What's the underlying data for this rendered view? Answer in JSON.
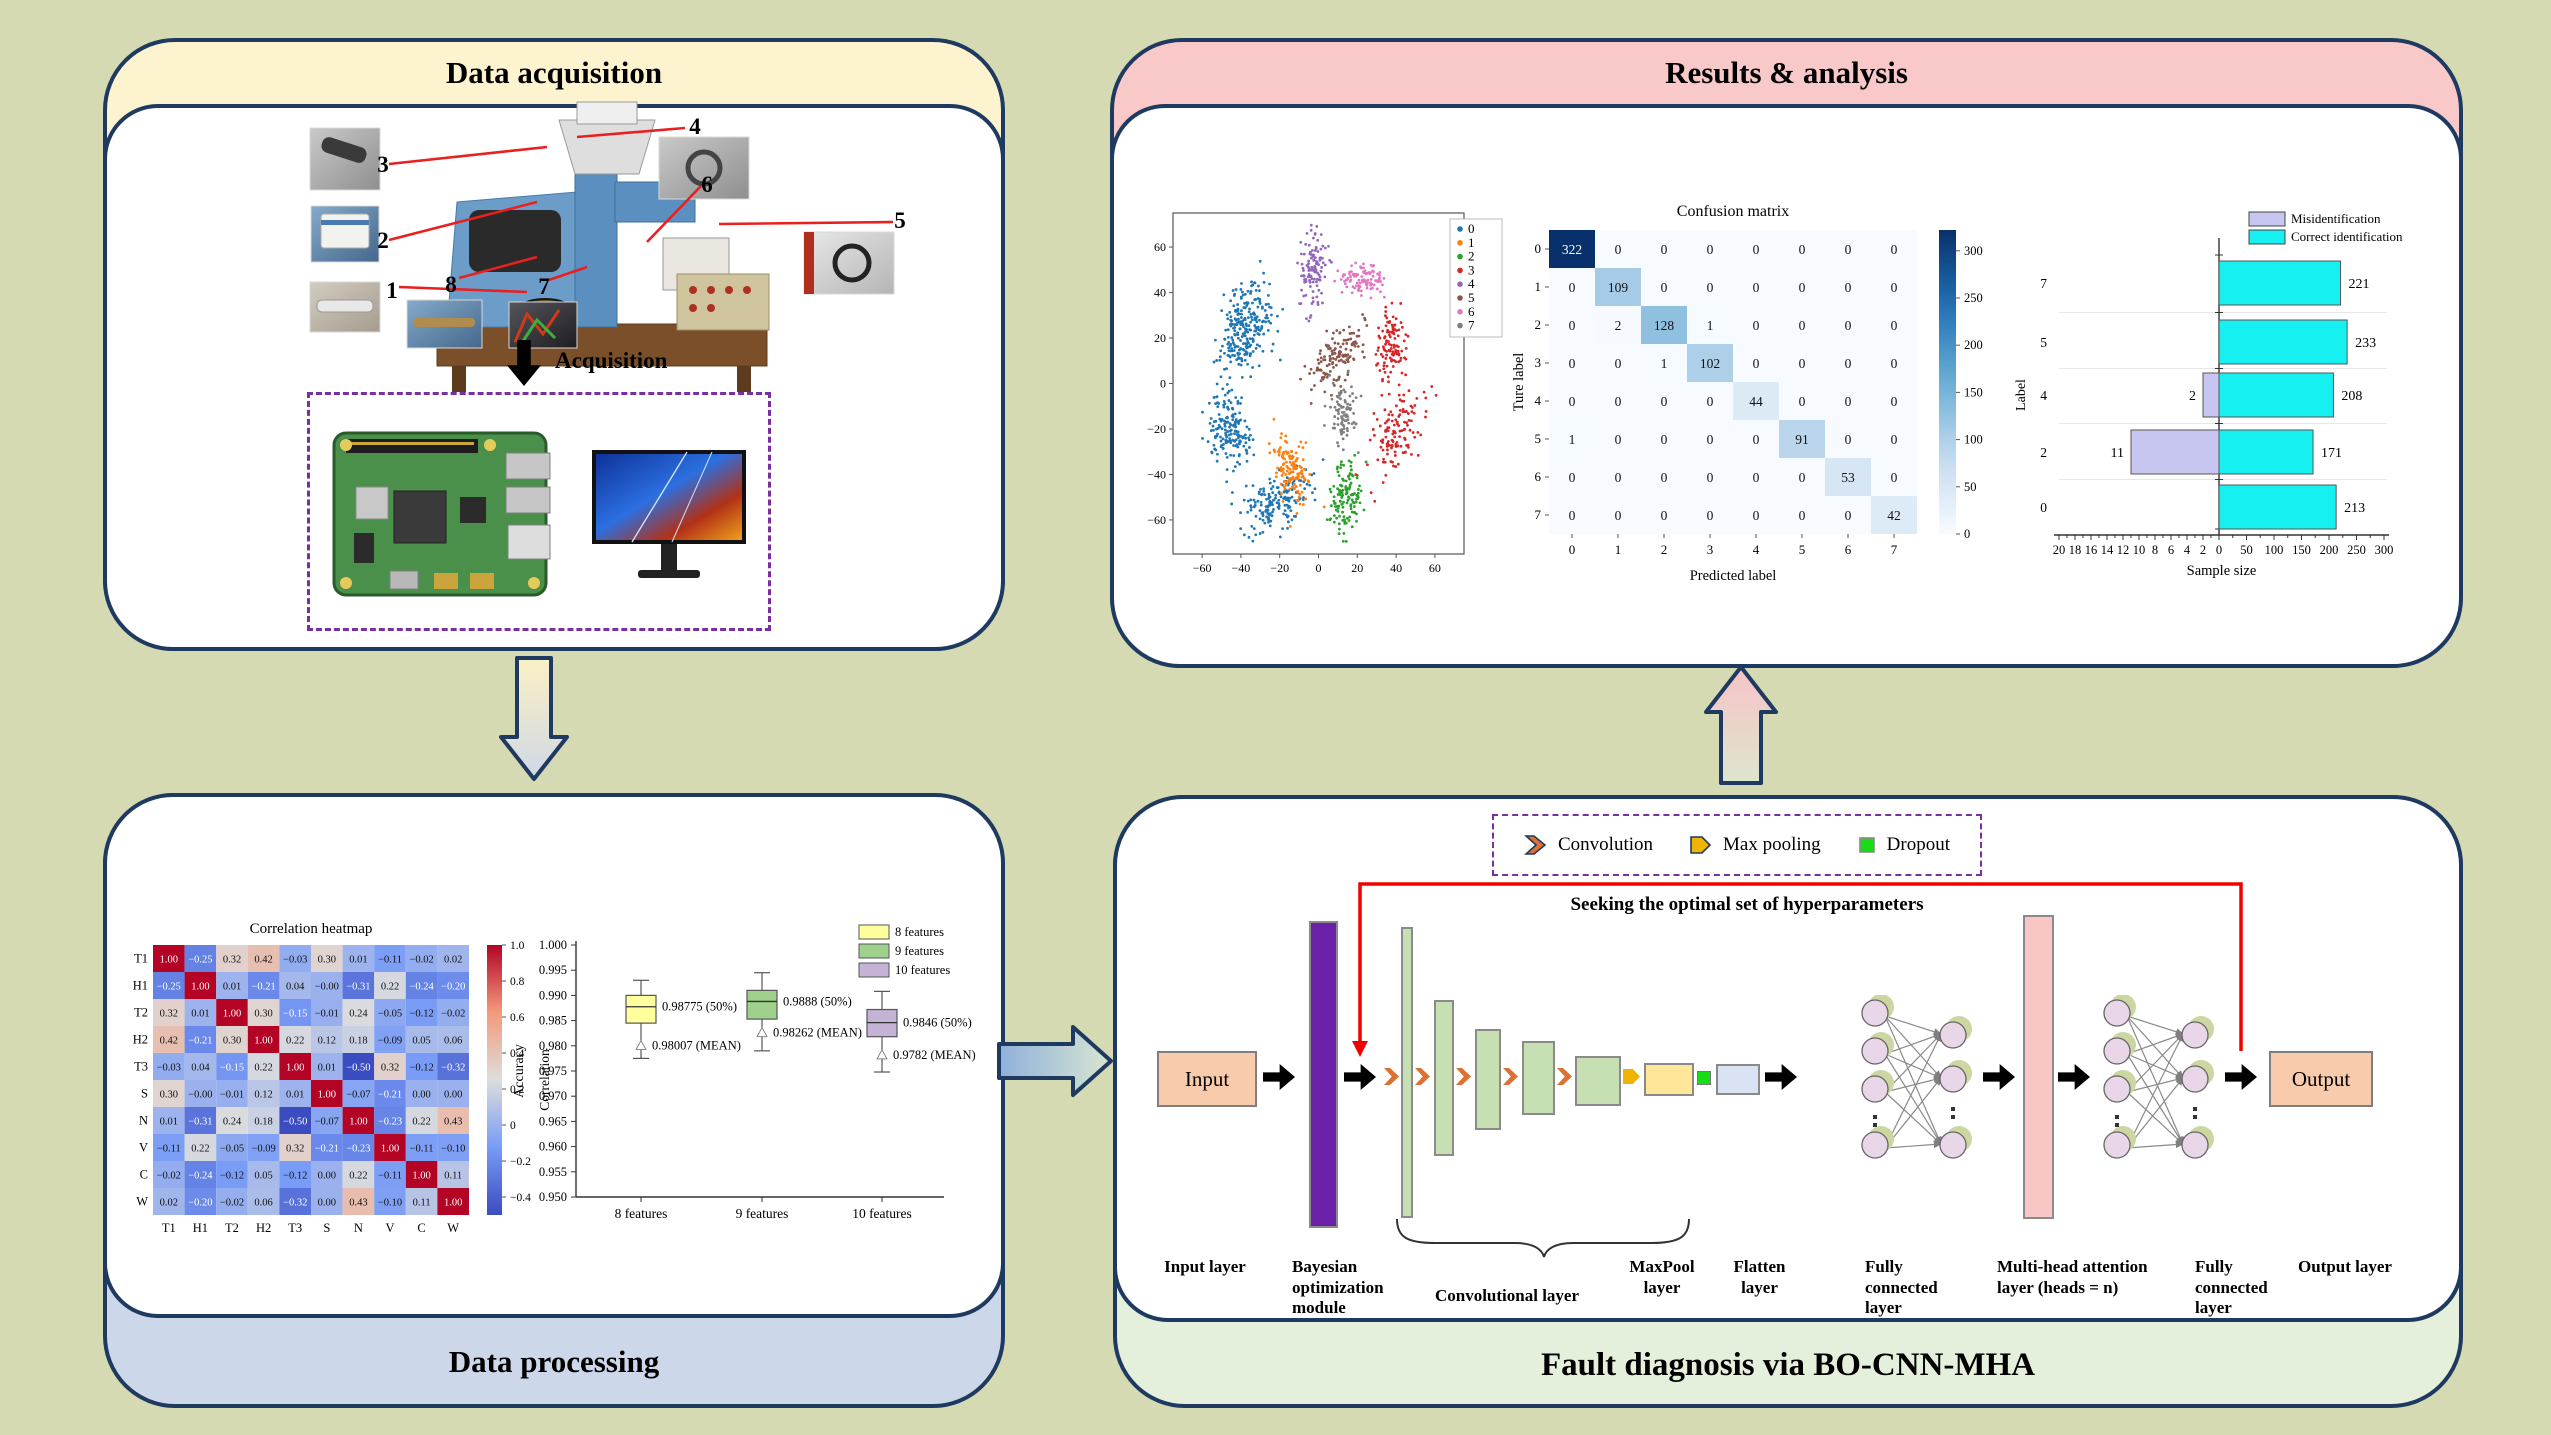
{
  "panels": {
    "data_acquisition": {
      "title": "Data acquisition",
      "acquisition_label": "Acquisition",
      "callouts": [
        "1",
        "2",
        "3",
        "4",
        "5",
        "6",
        "7",
        "8"
      ]
    },
    "data_processing": {
      "title": "Data processing"
    },
    "results": {
      "title": "Results & analysis"
    },
    "fault_diagnosis": {
      "title": "Fault diagnosis via BO-CNN-MHA",
      "hyperparam_label": "Seeking the optimal set of hyperparameters",
      "input_label": "Input",
      "output_label": "Output",
      "legend": [
        {
          "icon": "convolution-chevron-icon",
          "label": "Convolution"
        },
        {
          "icon": "max-pooling-pentagon-icon",
          "label": "Max pooling"
        },
        {
          "icon": "dropout-square-icon",
          "label": "Dropout"
        }
      ],
      "layer_labels": [
        "Input layer",
        "Bayesian optimization module",
        "Convolutional layer",
        "MaxPool layer",
        "Flatten layer",
        "Fully connected layer",
        "Multi-head attention layer (heads = n)",
        "Fully connected layer",
        "Output layer"
      ]
    }
  },
  "chart_data": [
    {
      "id": "tsne",
      "type": "scatter",
      "title": "",
      "xlim": [
        -75,
        75
      ],
      "ylim": [
        -75,
        75
      ],
      "xticks": [
        -60,
        -40,
        -20,
        0,
        20,
        40,
        60
      ],
      "yticks": [
        -60,
        -40,
        -20,
        0,
        20,
        40,
        60
      ],
      "legend": [
        "0",
        "1",
        "2",
        "3",
        "4",
        "5",
        "6",
        "7"
      ],
      "colors": [
        "#1f77b4",
        "#ff7f0e",
        "#2ca02c",
        "#d62728",
        "#9467bd",
        "#8c564b",
        "#e377c2",
        "#7f7f7f"
      ],
      "clusters": [
        {
          "class": "0",
          "cx": -38,
          "cy": 25,
          "sx": 7,
          "sy": 9,
          "tilt": 0.35,
          "n": 260
        },
        {
          "class": "0",
          "cx": -47,
          "cy": -20,
          "sx": 6,
          "sy": 8,
          "tilt": -0.4,
          "n": 170
        },
        {
          "class": "0",
          "cx": -22,
          "cy": -52,
          "sx": 9,
          "sy": 6,
          "tilt": 0.35,
          "n": 170
        },
        {
          "class": "1",
          "cx": -14,
          "cy": -38,
          "sx": 5,
          "sy": 8,
          "tilt": -0.55,
          "n": 130
        },
        {
          "class": "2",
          "cx": 14,
          "cy": -50,
          "sx": 4,
          "sy": 8,
          "tilt": 0.3,
          "n": 130
        },
        {
          "class": "3",
          "cx": 38,
          "cy": 17,
          "sx": 3.5,
          "sy": 8,
          "tilt": 0.3,
          "n": 110
        },
        {
          "class": "3",
          "cx": 40,
          "cy": -22,
          "sx": 7,
          "sy": 9,
          "tilt": 0.75,
          "n": 130
        },
        {
          "class": "4",
          "cx": -3,
          "cy": 50,
          "sx": 3.5,
          "sy": 9,
          "tilt": 0.15,
          "n": 120
        },
        {
          "class": "5",
          "cx": 10,
          "cy": 12,
          "sx": 7,
          "sy": 6,
          "tilt": 0.55,
          "n": 140
        },
        {
          "class": "6",
          "cx": 22,
          "cy": 46,
          "sx": 5.5,
          "sy": 3.5,
          "tilt": 0,
          "n": 100
        },
        {
          "class": "7",
          "cx": 13,
          "cy": -13,
          "sx": 3.5,
          "sy": 7,
          "tilt": 0.3,
          "n": 90
        }
      ]
    },
    {
      "id": "confusion",
      "type": "heatmap",
      "title": "Confusion matrix",
      "xlabel": "Predicted label",
      "ylabel": "Ture label",
      "labels": [
        "0",
        "1",
        "2",
        "3",
        "4",
        "5",
        "6",
        "7"
      ],
      "vmin": 0,
      "vmax": 322,
      "matrix": [
        [
          322,
          0,
          0,
          0,
          0,
          0,
          0,
          0
        ],
        [
          0,
          109,
          0,
          0,
          0,
          0,
          0,
          0
        ],
        [
          0,
          2,
          128,
          1,
          0,
          0,
          0,
          0
        ],
        [
          0,
          0,
          1,
          102,
          0,
          0,
          0,
          0
        ],
        [
          0,
          0,
          0,
          0,
          44,
          0,
          0,
          0
        ],
        [
          1,
          0,
          0,
          0,
          0,
          91,
          0,
          0
        ],
        [
          0,
          0,
          0,
          0,
          0,
          0,
          53,
          0
        ],
        [
          0,
          0,
          0,
          0,
          0,
          0,
          0,
          42
        ]
      ],
      "colorbar_ticks": [
        300,
        250,
        200,
        150,
        100,
        50,
        0
      ]
    },
    {
      "id": "samplebars",
      "type": "bar",
      "xlabel": "Sample size",
      "ylabel": "Label",
      "categories": [
        "7",
        "5",
        "4",
        "2",
        "0"
      ],
      "series": [
        {
          "name": "Misidentification",
          "color": "#c6c6f0",
          "values": [
            0,
            0,
            2,
            11,
            0
          ]
        },
        {
          "name": "Correct identification",
          "color": "#17f0f0",
          "values": [
            221,
            233,
            208,
            171,
            213
          ]
        }
      ],
      "left_axis_ticks": [
        20,
        18,
        16,
        14,
        12,
        10,
        8,
        6,
        4,
        2,
        0
      ],
      "right_axis_ticks": [
        50,
        100,
        150,
        200,
        250,
        300
      ]
    },
    {
      "id": "corr",
      "type": "heatmap",
      "title": "Correlation heatmap",
      "labels": [
        "T1",
        "H1",
        "T2",
        "H2",
        "T3",
        "S",
        "N",
        "V",
        "C",
        "W"
      ],
      "vmin": -0.5,
      "vmax": 1.0,
      "colorbar_label": "Correlation",
      "colorbar_ticks": [
        1.0,
        0.8,
        0.6,
        0.4,
        0.2,
        0,
        -0.2,
        -0.4
      ],
      "matrix": [
        [
          "1.00",
          "-0.25",
          "0.32",
          "0.42",
          "-0.03",
          "0.30",
          "0.01",
          "-0.11",
          "-0.02",
          "0.02"
        ],
        [
          "-0.25",
          "1.00",
          "0.01",
          "-0.21",
          "0.04",
          "-0.00",
          "-0.31",
          "0.22",
          "-0.24",
          "-0.20"
        ],
        [
          "0.32",
          "0.01",
          "1.00",
          "0.30",
          "-0.15",
          "-0.01",
          "0.24",
          "-0.05",
          "-0.12",
          "-0.02"
        ],
        [
          "0.42",
          "-0.21",
          "0.30",
          "1.00",
          "0.22",
          "0.12",
          "0.18",
          "-0.09",
          "0.05",
          "0.06"
        ],
        [
          "-0.03",
          "0.04",
          "-0.15",
          "0.22",
          "1.00",
          "0.01",
          "-0.50",
          "0.32",
          "-0.12",
          "-0.32"
        ],
        [
          "0.30",
          "-0.00",
          "-0.01",
          "0.12",
          "0.01",
          "1.00",
          "-0.07",
          "-0.21",
          "0.00",
          "0.00"
        ],
        [
          "0.01",
          "-0.31",
          "0.24",
          "0.18",
          "-0.50",
          "-0.07",
          "1.00",
          "-0.23",
          "0.22",
          "0.43"
        ],
        [
          "-0.11",
          "0.22",
          "-0.05",
          "-0.09",
          "0.32",
          "-0.21",
          "-0.23",
          "1.00",
          "-0.11",
          "-0.10"
        ],
        [
          "-0.02",
          "-0.24",
          "-0.12",
          "0.05",
          "-0.12",
          "0.00",
          "0.22",
          "-0.11",
          "1.00",
          "0.11"
        ],
        [
          "0.02",
          "-0.20",
          "-0.02",
          "0.06",
          "-0.32",
          "0.00",
          "0.43",
          "-0.10",
          "0.11",
          "1.00"
        ]
      ]
    },
    {
      "id": "accbox",
      "type": "box",
      "ylabel": "Accuracy",
      "ylim": [
        0.95,
        1.0
      ],
      "categories": [
        "8 features",
        "9 features",
        "10 features"
      ],
      "colors": [
        "#ffff9e",
        "#9fd18c",
        "#c5b3d6"
      ],
      "legend": [
        "8 features",
        "9 features",
        "10 features"
      ],
      "boxes": [
        {
          "whislo": 0.9775,
          "q1": 0.9845,
          "med": 0.98775,
          "q3": 0.99,
          "whishi": 0.993,
          "mean": 0.98007,
          "med_label": "0.98775 (50%)",
          "mean_label": "0.98007 (MEAN)"
        },
        {
          "whislo": 0.979,
          "q1": 0.9853,
          "med": 0.9888,
          "q3": 0.991,
          "whishi": 0.9945,
          "mean": 0.98262,
          "med_label": "0.9888 (50%)",
          "mean_label": "0.98262 (MEAN)"
        },
        {
          "whislo": 0.9748,
          "q1": 0.9818,
          "med": 0.9846,
          "q3": 0.9872,
          "whishi": 0.9908,
          "mean": 0.9782,
          "med_label": "0.9846 (50%)",
          "mean_label": "0.9782 (MEAN)"
        }
      ]
    }
  ]
}
